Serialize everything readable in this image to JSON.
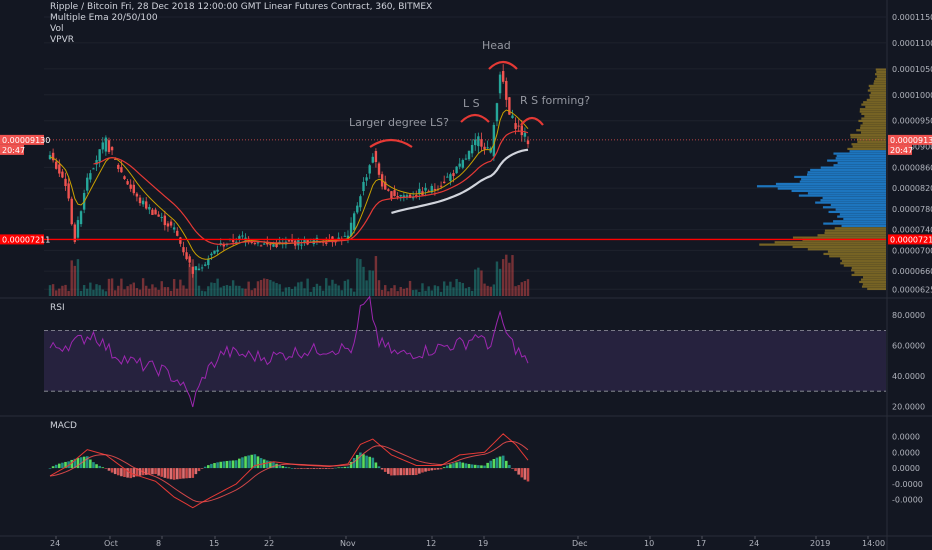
{
  "header": {
    "title": "Ripple / Bitcoin Fri, 28 Dec 2018 12:00:00 GMT Linear Futures Contract, 360, BITMEX",
    "indicators": [
      "Multiple Ema 20/50/100",
      "Vol",
      "VPVR"
    ]
  },
  "panes": {
    "rsi_label": "RSI",
    "macd_label": "MACD"
  },
  "colors": {
    "up": "#26a69a",
    "down": "#ef5350",
    "rsi": "#9c27b0",
    "rsi_band": "#7e57c2",
    "ema_short": "#c8a000",
    "ema_mid": "#e53935",
    "ema_long": "#d1d4dc",
    "vpvr_main": "#c9a227",
    "vpvr_value": "#2196f3",
    "annotation": "#e53935"
  },
  "chart_data": [
    {
      "type": "candlestick",
      "name": "price",
      "y_axis_ticks": [
        "0.00011500",
        "0.00011000",
        "0.00010500",
        "0.00010000",
        "0.00009500",
        "0.00008600",
        "0.00008200",
        "0.00007800",
        "0.00007400",
        "0.00007000",
        "0.00006600",
        "0.00006250"
      ],
      "y_axis_values": [
        0.000115,
        0.00011,
        0.000105,
        0.0001,
        9.5e-05,
        8.6e-05,
        8.2e-05,
        7.8e-05,
        7.4e-05,
        7e-05,
        6.6e-05,
        6.25e-05
      ],
      "ylim": [
        6.12e-05,
        0.0001175
      ],
      "x_axis_ticks": [
        "24",
        "Oct",
        "8",
        "15",
        "22",
        "Nov",
        "12",
        "19",
        "Dec",
        "10",
        "17",
        "24",
        "2019",
        "14:00"
      ],
      "price_tags": [
        {
          "label": "0.00009130",
          "value": 9.13e-05,
          "sub": "20:47"
        },
        {
          "label": "0.00007211",
          "value": 7.211e-05
        }
      ],
      "price_tags_right": [
        {
          "label": "0.00009130",
          "value": 9.13e-05,
          "sub": "20:47"
        },
        {
          "label": "0.00007211",
          "value": 7.211e-05
        }
      ],
      "extra_right_tick": "0.00009000",
      "horizontal_line": 7.211e-05,
      "last_price_line": 9.13e-05,
      "key_points": [
        [
          0,
          8.8e-05
        ],
        [
          5,
          8.3e-05
        ],
        [
          8,
          7.2e-05
        ],
        [
          12,
          8.45e-05
        ],
        [
          18,
          9.1e-05
        ],
        [
          22,
          8.6e-05
        ],
        [
          28,
          8e-05
        ],
        [
          34,
          7.7e-05
        ],
        [
          40,
          7.4e-05
        ],
        [
          46,
          6.6e-05
        ],
        [
          50,
          6.78e-05
        ],
        [
          55,
          7.1e-05
        ],
        [
          62,
          7.25e-05
        ],
        [
          70,
          7.1e-05
        ],
        [
          80,
          7.16e-05
        ],
        [
          90,
          7.2e-05
        ],
        [
          96,
          7.25e-05
        ],
        [
          100,
          8.1e-05
        ],
        [
          104,
          8.84e-05
        ],
        [
          108,
          8.1e-05
        ],
        [
          116,
          8.05e-05
        ],
        [
          124,
          8.2e-05
        ],
        [
          132,
          8.6e-05
        ],
        [
          138,
          9.15e-05
        ],
        [
          142,
          8.9e-05
        ],
        [
          145,
          0.0001045
        ],
        [
          148,
          9.6e-05
        ],
        [
          151,
          9.35e-05
        ],
        [
          154,
          9.1e-05
        ]
      ],
      "annotations": [
        "Larger degree LS?",
        "L S",
        "Head",
        "R S forming?"
      ],
      "x_index_max": 200
    },
    {
      "type": "line",
      "name": "RSI",
      "ylim": [
        15,
        90
      ],
      "y_axis_ticks": [
        "80.0000",
        "60.0000",
        "40.0000",
        "20.0000"
      ],
      "y_axis_values": [
        80,
        60,
        40,
        20
      ],
      "bands": [
        30,
        70
      ],
      "key_points": [
        [
          0,
          58
        ],
        [
          8,
          62
        ],
        [
          14,
          68
        ],
        [
          20,
          55
        ],
        [
          28,
          48
        ],
        [
          36,
          44
        ],
        [
          42,
          36
        ],
        [
          46,
          22
        ],
        [
          50,
          42
        ],
        [
          56,
          56
        ],
        [
          62,
          54
        ],
        [
          70,
          52
        ],
        [
          80,
          56
        ],
        [
          90,
          58
        ],
        [
          98,
          58
        ],
        [
          100,
          84
        ],
        [
          103,
          88
        ],
        [
          106,
          62
        ],
        [
          112,
          54
        ],
        [
          120,
          56
        ],
        [
          128,
          60
        ],
        [
          134,
          62
        ],
        [
          138,
          68
        ],
        [
          141,
          58
        ],
        [
          145,
          78
        ],
        [
          148,
          64
        ],
        [
          151,
          56
        ],
        [
          154,
          48
        ]
      ]
    },
    {
      "type": "line",
      "name": "MACD",
      "ylim": [
        -1.25e-05,
        9.5e-06
      ],
      "y_axis_ticks": [
        "0.0000",
        "0.0000",
        "0.0000",
        "-0.0000",
        "-0.0000"
      ],
      "y_axis_values": [
        6e-06,
        3e-06,
        0,
        -3e-06,
        -6e-06
      ],
      "key_points": [
        [
          0,
          -1.5e-06
        ],
        [
          6,
          5e-07
        ],
        [
          12,
          3.5e-06
        ],
        [
          18,
          2.5e-06
        ],
        [
          26,
          -1e-06
        ],
        [
          34,
          -2.5e-06
        ],
        [
          40,
          -5.5e-06
        ],
        [
          46,
          -7.5e-06
        ],
        [
          52,
          -5.5e-06
        ],
        [
          60,
          -3e-06
        ],
        [
          66,
          5e-07
        ],
        [
          72,
          1.2e-06
        ],
        [
          80,
          6e-07
        ],
        [
          90,
          3e-07
        ],
        [
          96,
          8e-07
        ],
        [
          100,
          4.5e-06
        ],
        [
          104,
          5.5e-06
        ],
        [
          110,
          2.5e-06
        ],
        [
          118,
          5e-07
        ],
        [
          126,
          5e-07
        ],
        [
          132,
          2.5e-06
        ],
        [
          140,
          3e-06
        ],
        [
          146,
          6.5e-06
        ],
        [
          150,
          4.5e-06
        ],
        [
          154,
          1.5e-06
        ]
      ]
    }
  ]
}
